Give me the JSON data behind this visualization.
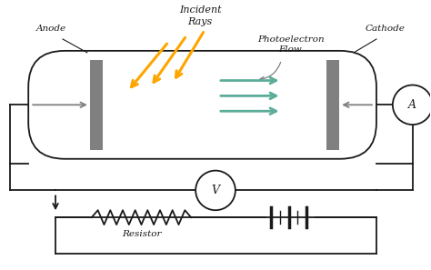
{
  "bg_color": "#ffffff",
  "line_color": "#1a1a1a",
  "gray_color": "#808080",
  "orange_color": "#FFA500",
  "teal_color": "#5BAD9A",
  "anode_label": "Anode",
  "cathode_label": "Cathode",
  "incident_label": "Incident\nRays",
  "flow_label": "Photoelectron\nFlow",
  "resistor_label": "Resistor"
}
